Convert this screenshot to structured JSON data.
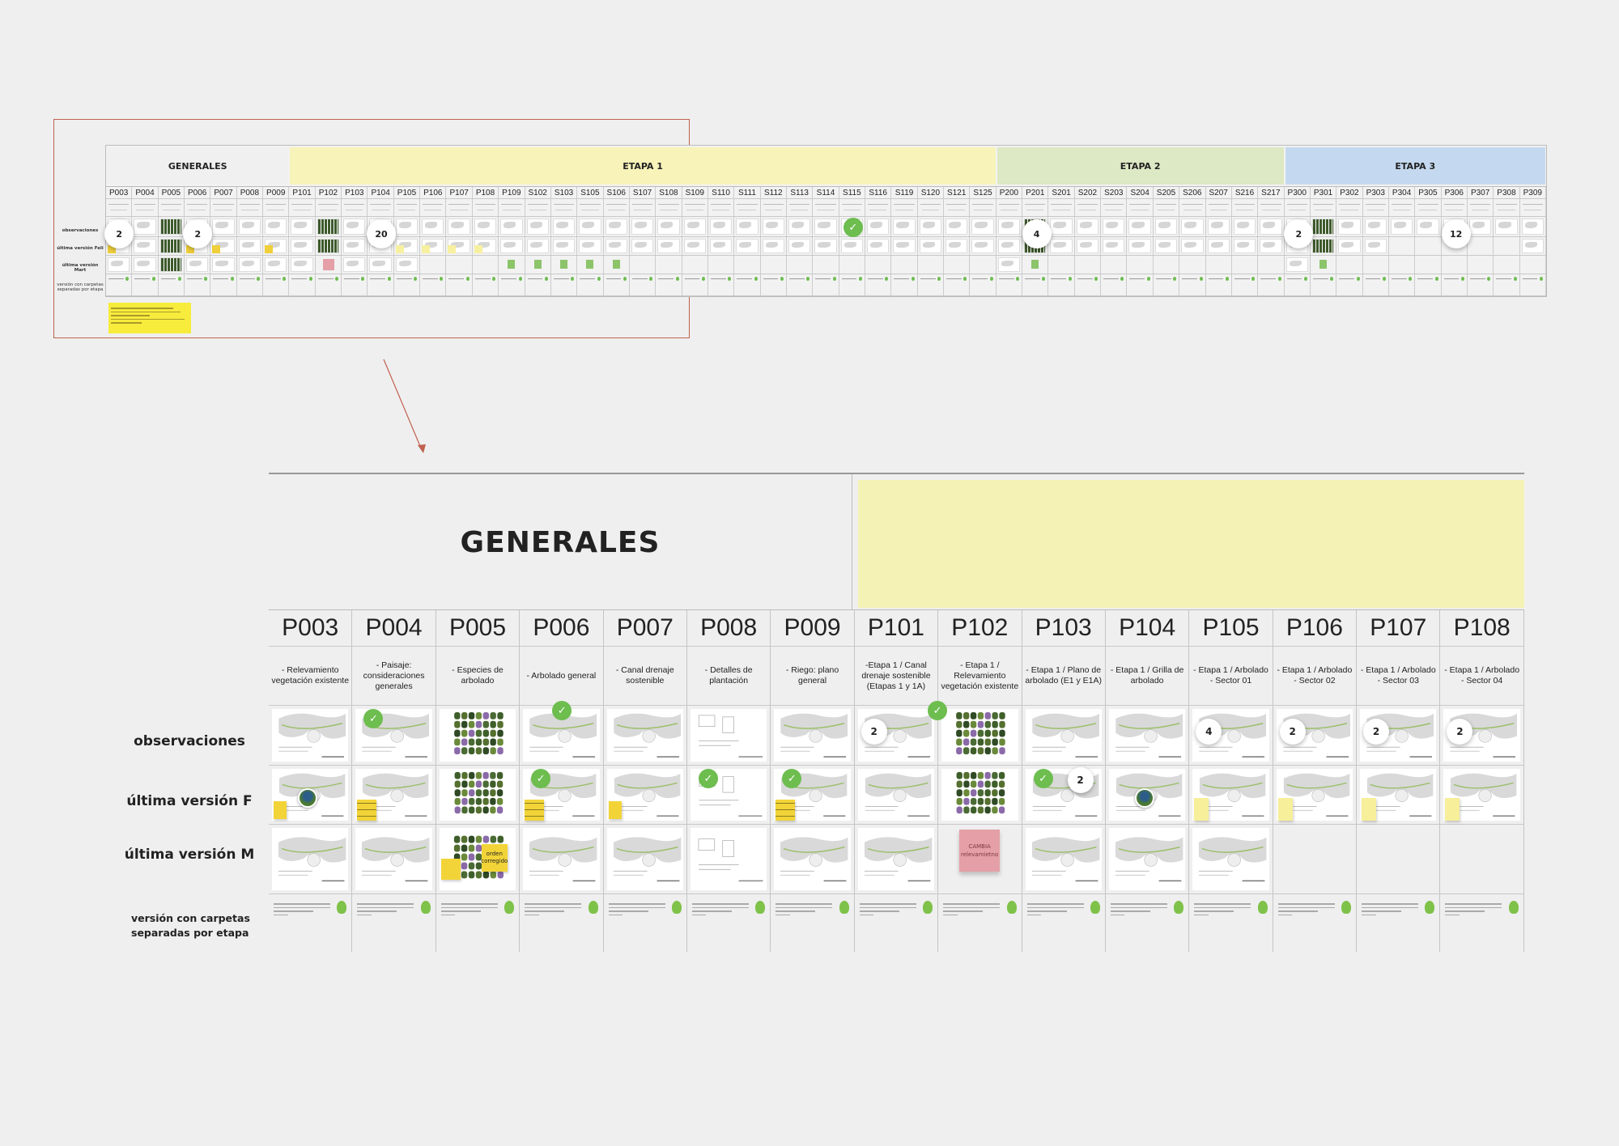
{
  "overview": {
    "row_labels": [
      "observaciones",
      "última versión Feli",
      "última versión Mart",
      "versión con carpetas separadas por etapa"
    ],
    "sections": [
      {
        "title": "GENERALES",
        "color": "#f0f0f0",
        "codes": [
          "P003",
          "P004",
          "P005",
          "P006",
          "P007",
          "P008",
          "P009"
        ]
      },
      {
        "title": "ETAPA 1",
        "color": "#f7f3b9",
        "codes": [
          "P101",
          "P102",
          "P103",
          "P104",
          "P105",
          "P106",
          "P107",
          "P108",
          "P109",
          "S102",
          "S103",
          "S105",
          "S106",
          "S107",
          "S108",
          "S109",
          "S110",
          "S111",
          "S112",
          "S113",
          "S114",
          "S115",
          "S116",
          "S119",
          "S120",
          "S121",
          "S125"
        ]
      },
      {
        "title": "ETAPA 2",
        "color": "#dde8c4",
        "codes": [
          "P200",
          "P201",
          "S201",
          "S202",
          "S203",
          "S204",
          "S205",
          "S206",
          "S207",
          "S216",
          "S217"
        ]
      },
      {
        "title": "ETAPA 3",
        "color": "#c4d9ef",
        "codes": [
          "P300",
          "P301",
          "P302",
          "P303",
          "P304",
          "P305",
          "P306",
          "P307",
          "P308",
          "P309"
        ]
      }
    ],
    "m_row": {
      "P003": "thumb",
      "P004": "thumb",
      "P005": "trees",
      "P006": "thumb",
      "P007": "thumb",
      "P008": "thumb",
      "P009": "thumb",
      "P101": "thumb",
      "P102": "pink",
      "P103": "thumb",
      "P104": "thumb",
      "P105": "thumb",
      "P109": "green",
      "S102": "green",
      "S103": "green",
      "S105": "green",
      "S106": "green",
      "P200": "thumb",
      "P201": "green",
      "P300": "thumb",
      "P301": "green"
    },
    "f_empty": [
      "P304",
      "P305",
      "P306",
      "P307",
      "P308"
    ],
    "f_notes": [
      "P003",
      "P006",
      "P007",
      "P009",
      "P105",
      "P106",
      "P107",
      "P108"
    ],
    "badges": [
      {
        "col": "P003",
        "text": "2"
      },
      {
        "col": "P006",
        "text": "2"
      },
      {
        "col": "P104",
        "text": "20"
      },
      {
        "col": "P201",
        "text": "4"
      },
      {
        "col": "P300",
        "text": "2"
      },
      {
        "col": "P306",
        "text": "12"
      }
    ],
    "checks": [
      "S115"
    ]
  },
  "detail": {
    "generales_title": "GENERALES",
    "row_labels": {
      "obs": "observaciones",
      "f": "última versión F",
      "m": "última versión M",
      "version_1": "versión con carpetas",
      "version_2": "separadas por etapa"
    },
    "columns": [
      {
        "code": "P003",
        "desc": "- Relevamiento vegetación existente",
        "obs": "plan",
        "f": "plan",
        "m": "plan",
        "f_avatar": true,
        "f_note": "sm"
      },
      {
        "code": "P004",
        "desc": "- Paisaje: consideraciones generales",
        "obs": "plan",
        "f": "plan",
        "m": "plan",
        "obs_check": true,
        "f_note": "lines"
      },
      {
        "code": "P005",
        "desc": "- Especies de arbolado",
        "obs": "trees",
        "f": "trees",
        "m": "trees",
        "m_note": "orden corregido"
      },
      {
        "code": "P006",
        "desc": "- Arbolado general",
        "obs": "plan",
        "f": "plan",
        "m": "plan",
        "obs_check": true,
        "f_check": true,
        "f_note": "lines"
      },
      {
        "code": "P007",
        "desc": "- Canal drenaje sostenible",
        "obs": "plan",
        "f": "plan",
        "m": "plan",
        "f_note": "sm"
      },
      {
        "code": "P008",
        "desc": "- Detalles de plantación",
        "obs": "detail",
        "f": "detail",
        "m": "detail",
        "f_check": true
      },
      {
        "code": "P009",
        "desc": "- Riego: plano general",
        "obs": "plan",
        "f": "plan",
        "m": "plan",
        "f_check": true,
        "f_note": "lines"
      },
      {
        "code": "P101",
        "desc": "-Etapa 1 / Canal drenaje sostenible (Etapas 1 y 1A)",
        "obs": "plan",
        "f": "plan",
        "m": "plan",
        "obs_badge": "2",
        "obs_check": true
      },
      {
        "code": "P102",
        "desc": "- Etapa 1 / Relevamiento vegetación existente",
        "obs": "trees",
        "f": "trees",
        "m": "",
        "m_pink": "CAMBIA relevamietno"
      },
      {
        "code": "P103",
        "desc": "- Etapa 1 / Plano de arbolado (E1 y E1A)",
        "obs": "plan",
        "f": "plan",
        "m": "plan",
        "f_badge": "2",
        "f_check": true
      },
      {
        "code": "P104",
        "desc": "- Etapa 1 / Grilla de arbolado",
        "obs": "plan",
        "f": "plan",
        "m": "plan",
        "f_avatar": true
      },
      {
        "code": "P105",
        "desc": "- Etapa 1 / Arbolado - Sector 01",
        "obs": "plan",
        "f": "plan",
        "m": "plan",
        "obs_badge": "4",
        "f_note": "sm"
      },
      {
        "code": "P106",
        "desc": "- Etapa 1 / Arbolado - Sector 02",
        "obs": "plan",
        "f": "plan",
        "m": "",
        "obs_badge": "2",
        "f_note": "sm"
      },
      {
        "code": "P107",
        "desc": "- Etapa 1 / Arbolado - Sector 03",
        "obs": "plan",
        "f": "plan",
        "m": "",
        "obs_badge": "2",
        "f_note": "sm"
      },
      {
        "code": "P108",
        "desc": "- Etapa 1 / Arbolado - Sector 04",
        "obs": "plan",
        "f": "plan",
        "m": "",
        "obs_badge": "2",
        "f_note": "sm"
      }
    ]
  },
  "colors": {
    "accent_check": "#6dbd4f",
    "sticky_yellow": "#f2d438",
    "sticky_pink": "#e4a0a6",
    "frame_red": "#c0614f"
  }
}
